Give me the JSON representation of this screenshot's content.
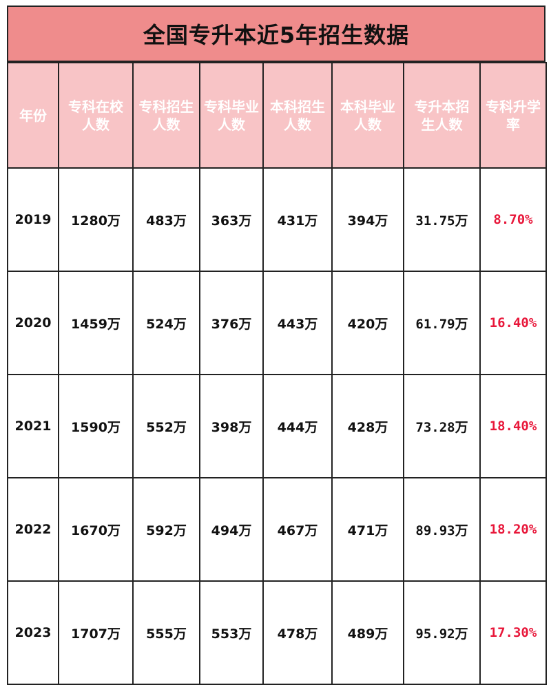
{
  "title": "全国专升本近5年招生数据",
  "headers": [
    "年份",
    "专科在校人数",
    "专科招生人数",
    "专科毕业人数",
    "本科招生人数",
    "本科毕业人数",
    "专升本招生人数",
    "专科升学率"
  ],
  "rows": [
    [
      "2019",
      "1280万",
      "483万",
      "363万",
      "431万",
      "394万",
      "31.75万",
      "8.70%"
    ],
    [
      "2020",
      "1459万",
      "524万",
      "376万",
      "443万",
      "420万",
      "61.79万",
      "16.40%"
    ],
    [
      "2021",
      "1590万",
      "552万",
      "398万",
      "444万",
      "428万",
      "73.28万",
      "18.40%"
    ],
    [
      "2022",
      "1670万",
      "592万",
      "494万",
      "467万",
      "471万",
      "89.93万",
      "18.20%"
    ],
    [
      "2023",
      "1707万",
      "555万",
      "553万",
      "478万",
      "489万",
      "95.92万",
      "17.30%"
    ]
  ],
  "colors": {
    "title_bg": "#ef8c8c",
    "header_bg": "#f8c4c6",
    "header_text": "#ffffff",
    "rate_text": "#e8173a",
    "border": "#222222"
  }
}
